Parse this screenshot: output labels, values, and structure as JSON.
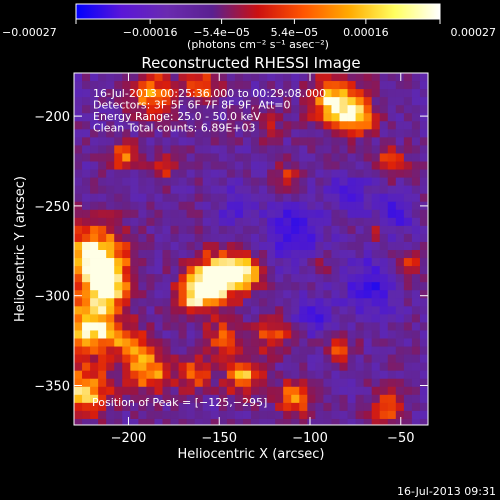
{
  "chart_data": {
    "type": "heatmap",
    "title": "Reconstructed RHESSI Image",
    "xlabel": "Heliocentric X (arcsec)",
    "ylabel": "Heliocentric Y (arcsec)",
    "xlim": [
      -230,
      -35
    ],
    "ylim": [
      -372,
      -176
    ],
    "x_ticks": [
      -200,
      -150,
      -100,
      -50
    ],
    "y_ticks": [
      -200,
      -250,
      -300,
      -350
    ],
    "x_tick_labels": [
      "−200",
      "−150",
      "−100",
      "−50"
    ],
    "y_tick_labels": [
      "−200",
      "−250",
      "−300",
      "−350"
    ],
    "colorbar": {
      "min": -0.00027,
      "max": 0.00027,
      "ticks": [
        -0.00027,
        -0.00016,
        -5.4e-05,
        5.4e-05,
        0.00016,
        0.00027
      ],
      "tick_labels": [
        "−0.00027",
        "−0.00016",
        "−5.4e−05",
        "5.4e−05",
        "0.00016",
        "0.00027"
      ],
      "unit_label": "(photons cm⁻² s⁻¹ asec⁻²)",
      "colors": [
        "#0000ff",
        "#5a16d8",
        "#6a2bb0",
        "#5a2090",
        "#cc1010",
        "#ff5500",
        "#ffaa00",
        "#ffff60",
        "#ffffff"
      ]
    },
    "info_lines": [
      "16-Jul-2013 00:25:36.000 to 00:29:08.000",
      "Detectors: 3F 5F 6F 7F 8F 9F, Att=0",
      "Energy Range: 25.0 - 50.0 keV",
      "Clean     Total counts: 6.89E+03"
    ],
    "peak_label": "Position of Peak = [−125,−295]",
    "peak": [
      -125,
      -295
    ],
    "footer_timestamp": "16-Jul-2013 09:31"
  }
}
